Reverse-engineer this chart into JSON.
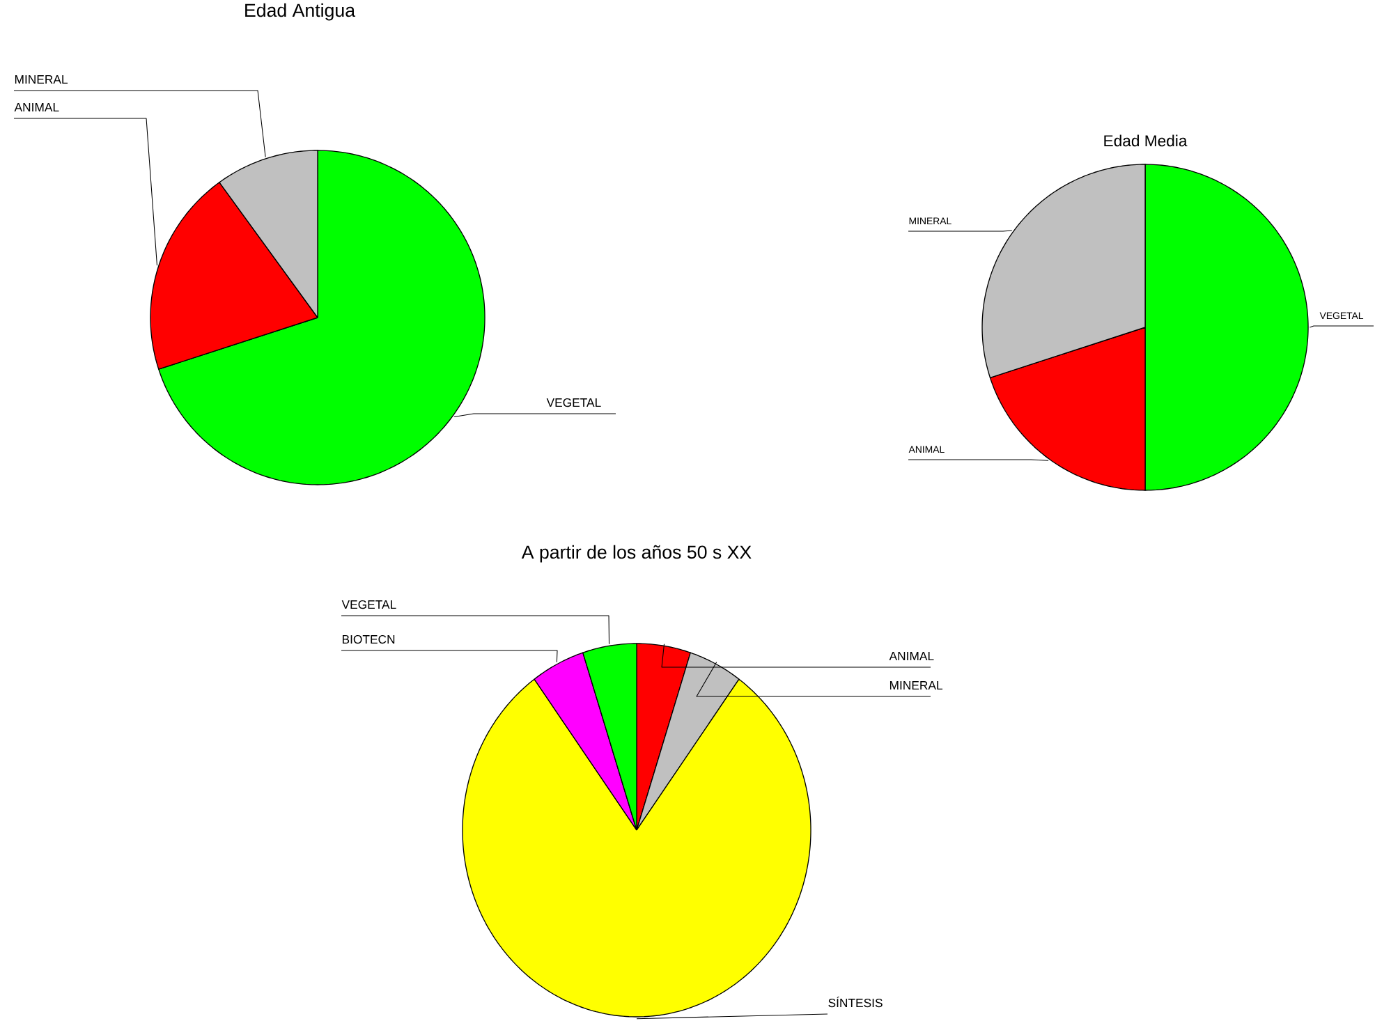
{
  "chart_data": [
    {
      "type": "pie",
      "title": "Edad Antigua",
      "categories": [
        "VEGETAL",
        "ANIMAL",
        "MINERAL"
      ],
      "values": [
        70,
        20,
        10
      ],
      "colors": [
        "#00ff00",
        "#ff0000",
        "#c0c0c0"
      ]
    },
    {
      "type": "pie",
      "title": "Edad Media",
      "categories": [
        "VEGETAL",
        "ANIMAL",
        "MINERAL"
      ],
      "values": [
        50,
        20,
        30
      ],
      "colors": [
        "#00ff00",
        "#ff0000",
        "#c0c0c0"
      ]
    },
    {
      "type": "pie",
      "title": "A partir de los años 50 s XX",
      "categories": [
        "ANIMAL",
        "MINERAL",
        "SÍNTESIS",
        "BIOTECN",
        "VEGETAL"
      ],
      "values": [
        5,
        5,
        80,
        5,
        5
      ],
      "colors": [
        "#ff0000",
        "#c0c0c0",
        "#ffff00",
        "#ff00ff",
        "#00ff00"
      ]
    }
  ]
}
